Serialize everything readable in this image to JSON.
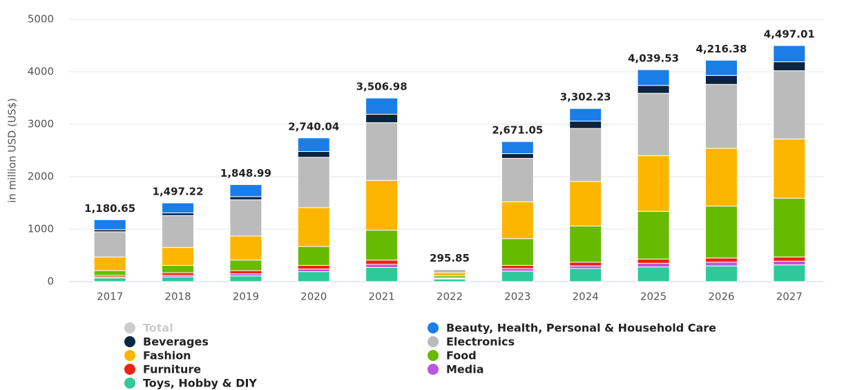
{
  "chart_data": {
    "type": "stacked_bar",
    "y_label": "in million USD (US$)",
    "categories": [
      "2017",
      "2018",
      "2019",
      "2020",
      "2021",
      "2022",
      "2023",
      "2024",
      "2025",
      "2026",
      "2027"
    ],
    "ylim": [
      0,
      5000
    ],
    "yticks": [
      0,
      1000,
      2000,
      3000,
      4000,
      5000
    ],
    "grid": true,
    "series": [
      {
        "name": "Total",
        "color": "#cccccc",
        "visible": false,
        "values": [
          1180.65,
          1497.22,
          1848.99,
          2740.04,
          3506.98,
          295.85,
          2671.05,
          3302.23,
          4039.53,
          4216.38,
          4497.01
        ],
        "value_labels": [
          "1,180.65",
          "1,497.22",
          "1,848.99",
          "2,740.04",
          "3,506.98",
          "295.85",
          "2,671.05",
          "3,302.23",
          "4,039.53",
          "4,216.38",
          "4,497.01"
        ]
      },
      {
        "name": "Beauty, Health, Personal & Household Care",
        "color": "#1a7ee6",
        "values": [
          190,
          190,
          230,
          260,
          310,
          0,
          230,
          240,
          300,
          290,
          310
        ]
      },
      {
        "name": "Beverages",
        "color": "#0b2540",
        "values": [
          40,
          50,
          60,
          110,
          160,
          0,
          90,
          140,
          150,
          170,
          170
        ]
      },
      {
        "name": "Electronics",
        "color": "#bbbbbb",
        "values": [
          480,
          610,
          690,
          960,
          1100,
          60,
          830,
          1010,
          1190,
          1220,
          1300
        ]
      },
      {
        "name": "Fashion",
        "color": "#fdb600",
        "values": [
          260,
          340,
          460,
          740,
          950,
          60,
          700,
          850,
          1060,
          1100,
          1130
        ]
      },
      {
        "name": "Food",
        "color": "#66bb00",
        "values": [
          90,
          140,
          200,
          360,
          570,
          40,
          510,
          690,
          910,
          990,
          1120
        ]
      },
      {
        "name": "Furniture",
        "color": "#ee2211",
        "values": [
          30,
          50,
          60,
          70,
          80,
          10,
          60,
          70,
          80,
          80,
          80
        ]
      },
      {
        "name": "Media",
        "color": "#bb55dd",
        "values": [
          20,
          30,
          40,
          50,
          60,
          10,
          50,
          50,
          70,
          70,
          70
        ]
      },
      {
        "name": "Toys, Hobby & DIY",
        "color": "#2ec99a",
        "values": [
          70,
          90,
          110,
          190,
          270,
          50,
          200,
          250,
          280,
          300,
          320
        ]
      }
    ]
  }
}
